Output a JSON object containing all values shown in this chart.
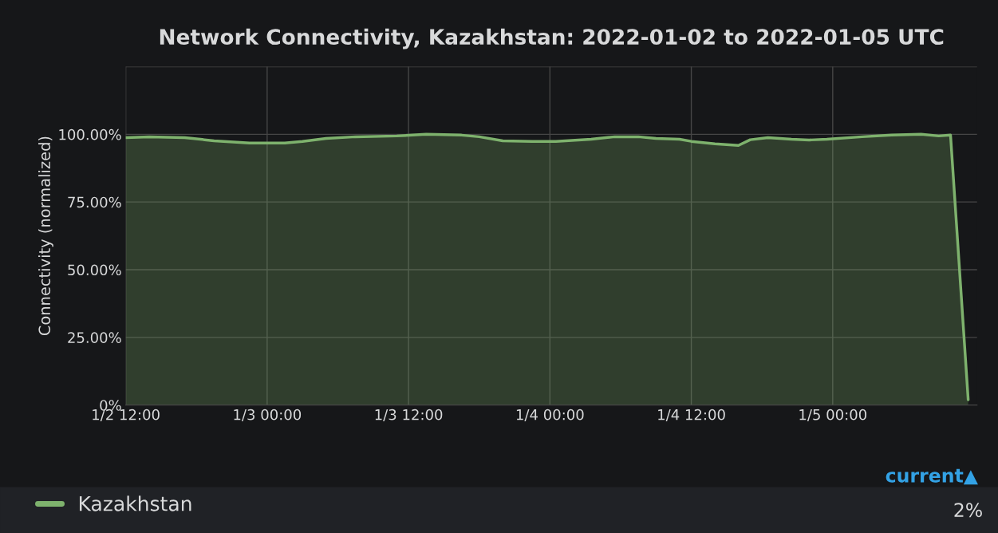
{
  "chart_data": {
    "type": "area",
    "title": "Network Connectivity, Kazakhstan: 2022-01-02 to 2022-01-05 UTC",
    "ylabel": "Connectivity (normalized)",
    "x": [
      "2022-01-02T12:00",
      "2022-01-02T14:00",
      "2022-01-02T17:00",
      "2022-01-02T19:30",
      "2022-01-02T22:30",
      "2022-01-03T01:30",
      "2022-01-03T03:00",
      "2022-01-03T05:00",
      "2022-01-03T07:30",
      "2022-01-03T11:00",
      "2022-01-03T13:30",
      "2022-01-03T16:30",
      "2022-01-03T18:00",
      "2022-01-03T20:00",
      "2022-01-03T22:30",
      "2022-01-04T00:30",
      "2022-01-04T03:30",
      "2022-01-04T05:30",
      "2022-01-04T07:30",
      "2022-01-04T09:00",
      "2022-01-04T11:00",
      "2022-01-04T12:00",
      "2022-01-04T14:00",
      "2022-01-04T16:00",
      "2022-01-04T17:00",
      "2022-01-04T18:30",
      "2022-01-04T20:30",
      "2022-01-04T22:00",
      "2022-01-04T23:30",
      "2022-01-05T02:30",
      "2022-01-05T05:00",
      "2022-01-05T07:30",
      "2022-01-05T09:00",
      "2022-01-05T10:00",
      "2022-01-05T11:30"
    ],
    "series": [
      {
        "name": "Kazakhstan",
        "color": "#7eb26d",
        "values": [
          98.8,
          99.1,
          98.8,
          97.6,
          96.8,
          96.8,
          97.4,
          98.5,
          99.1,
          99.4,
          100,
          99.7,
          99.1,
          97.6,
          97.4,
          97.4,
          98.2,
          99.1,
          99.1,
          98.5,
          98.2,
          97.4,
          96.5,
          95.9,
          98,
          98.8,
          98.2,
          97.9,
          98.2,
          99.1,
          99.7,
          100,
          99.4,
          99.7,
          2
        ]
      }
    ],
    "xlim": [
      "2022-01-02T12:00",
      "2022-01-05T12:15"
    ],
    "xticks": [
      {
        "value": "2022-01-02T12:00",
        "label": "1/2 12:00"
      },
      {
        "value": "2022-01-03T00:00",
        "label": "1/3 00:00"
      },
      {
        "value": "2022-01-03T12:00",
        "label": "1/3 12:00"
      },
      {
        "value": "2022-01-04T00:00",
        "label": "1/4 00:00"
      },
      {
        "value": "2022-01-04T12:00",
        "label": "1/4 12:00"
      },
      {
        "value": "2022-01-05T00:00",
        "label": "1/5 00:00"
      }
    ],
    "ylim": [
      0,
      125
    ],
    "yticks": [
      {
        "value": 0,
        "label": "0%"
      },
      {
        "value": 25,
        "label": "25.00%"
      },
      {
        "value": 50,
        "label": "50.00%"
      },
      {
        "value": 75,
        "label": "75.00%"
      },
      {
        "value": 100,
        "label": "100.00%"
      },
      {
        "value": 125,
        "label": null
      }
    ],
    "grid": true,
    "legend": "bottom",
    "annotations": [
      "current▲",
      "2%"
    ]
  }
}
